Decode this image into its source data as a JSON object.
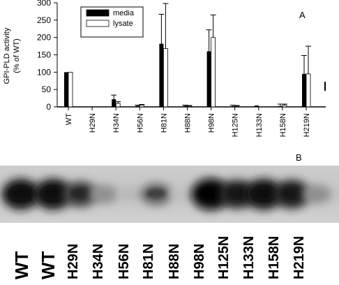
{
  "chart_data": {
    "type": "bar",
    "panel_label": "A",
    "ylabel_line1": "GPI-PLD activity",
    "ylabel_line2": "(% of WT)",
    "ylim": [
      0,
      300
    ],
    "yticks": [
      0,
      50,
      100,
      150,
      200,
      250,
      300
    ],
    "categories": [
      "WT",
      "H29N",
      "H34N",
      "H56N",
      "H81N",
      "H88N",
      "H98N",
      "H125N",
      "H133N",
      "H158N",
      "H219N"
    ],
    "series": [
      {
        "name": "media",
        "color": "#000000",
        "values": [
          100,
          1,
          22,
          3,
          182,
          3,
          160,
          2,
          4,
          2,
          95
        ],
        "errors": [
          0,
          0,
          12,
          2,
          85,
          2,
          62,
          3,
          0,
          6,
          53
        ]
      },
      {
        "name": "lysate",
        "color": "#ffffff",
        "values": [
          100,
          0,
          10,
          5,
          168,
          2,
          200,
          2,
          0,
          5,
          95
        ],
        "errors": [
          0,
          0,
          5,
          2,
          130,
          2,
          65,
          2,
          0,
          3,
          80
        ]
      }
    ],
    "legend_position": "top-left",
    "grid": false
  },
  "blot": {
    "panel_label": "B",
    "lanes": [
      "WT",
      "WT",
      "H29N",
      "H34N",
      "H56N",
      "H81N",
      "H88N",
      "H98N",
      "H125N",
      "H133N",
      "H158N",
      "H219N"
    ],
    "band_intensity": [
      0.95,
      0.95,
      0.7,
      0.3,
      0.08,
      0.5,
      0.05,
      1.0,
      0.85,
      0.95,
      0.85,
      0.3
    ]
  }
}
